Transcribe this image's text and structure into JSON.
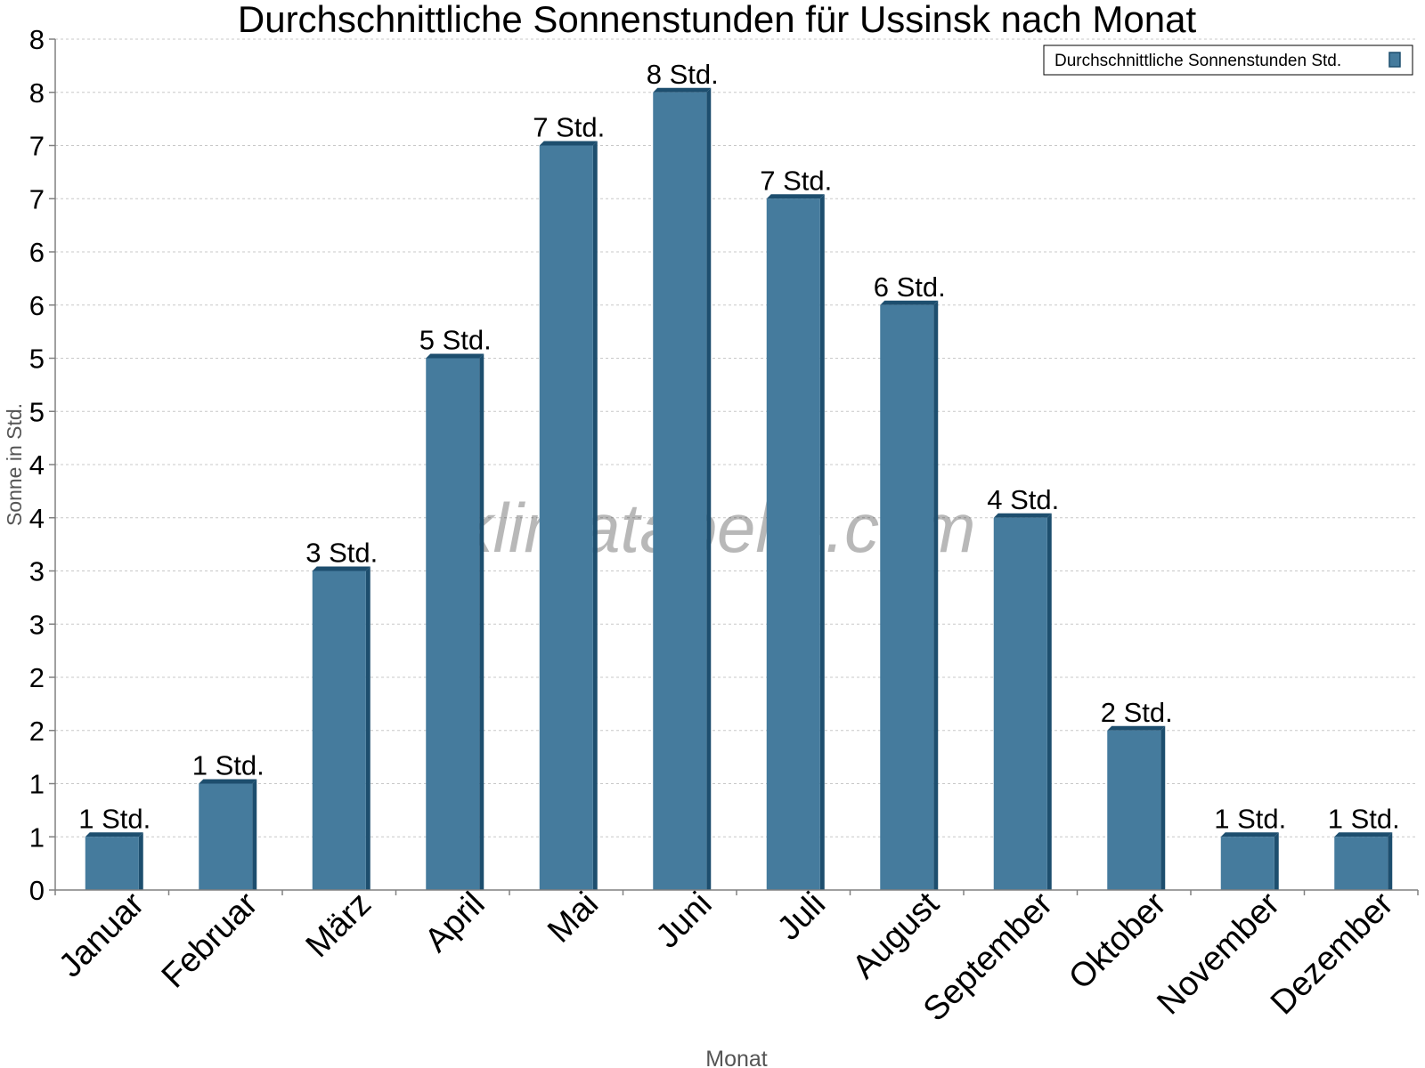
{
  "chart_data": {
    "type": "bar",
    "title": "Durchschnittliche Sonnenstunden für Ussinsk nach Monat",
    "xlabel": "Monat",
    "ylabel": "Sonne in Std.",
    "watermark": "klimatabelle.com",
    "ylim": [
      0,
      8
    ],
    "yticks": [
      "0",
      "1",
      "1",
      "2",
      "2",
      "3",
      "3",
      "4",
      "4",
      "5",
      "5",
      "6",
      "6",
      "7",
      "7",
      "8",
      "8"
    ],
    "grid": true,
    "legend_position": "top-right",
    "categories": [
      "Januar",
      "Februar",
      "März",
      "April",
      "Mai",
      "Juni",
      "Juli",
      "August",
      "September",
      "Oktober",
      "November",
      "Dezember"
    ],
    "series": [
      {
        "name": "Durchschnittliche Sonnenstunden Std.",
        "values": [
          0.5,
          1,
          3,
          5,
          7,
          7.5,
          6.5,
          5.5,
          3.5,
          1.5,
          0.5,
          0.5
        ],
        "labels": [
          "1 Std.",
          "1 Std.",
          "3 Std.",
          "5 Std.",
          "7 Std.",
          "8 Std.",
          "7 Std.",
          "6 Std.",
          "4 Std.",
          "2 Std.",
          "1 Std.",
          "1 Std."
        ],
        "color": "#457b9d",
        "color_dark": "#1d4e6e"
      }
    ]
  }
}
